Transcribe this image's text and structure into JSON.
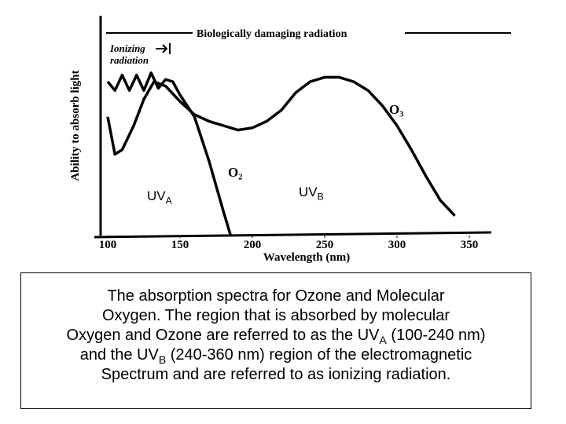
{
  "chart_data": {
    "type": "line",
    "y_label": "Ability to absorb light",
    "x_label": "Wavelength (nm)",
    "xlim": [
      100,
      350
    ],
    "xticks": [
      100,
      150,
      200,
      250,
      300,
      350
    ],
    "ylim": [
      0,
      100
    ],
    "annotations": {
      "damaging": "Biologically damaging radiation",
      "ionizing_1": "Ionizing",
      "ionizing_2": "radiation"
    },
    "series": [
      {
        "name": "O₃",
        "color": "#000000",
        "x": [
          100,
          105,
          110,
          118,
          125,
          132,
          140,
          150,
          160,
          170,
          180,
          190,
          200,
          210,
          220,
          230,
          240,
          250,
          260,
          270,
          280,
          290,
          300,
          310,
          320,
          330,
          340
        ],
        "values": [
          54,
          37,
          39,
          50,
          62,
          70,
          68,
          61,
          55,
          52,
          50,
          48,
          49,
          52,
          57,
          65,
          70,
          72,
          72,
          70,
          66,
          59,
          50,
          39,
          27,
          16,
          9
        ]
      },
      {
        "name": "O₂",
        "color": "#000000",
        "x": [
          100,
          105,
          110,
          115,
          120,
          125,
          130,
          135,
          140,
          145,
          150,
          160,
          170,
          180,
          185
        ],
        "values": [
          70,
          66,
          73,
          66,
          73,
          66,
          74,
          67,
          71,
          70,
          64,
          54,
          34,
          11,
          0
        ]
      }
    ]
  },
  "uv_labels": [
    {
      "text": "UV",
      "sub": "A"
    },
    {
      "text": "UV",
      "sub": "B"
    }
  ],
  "caption": {
    "lines": [
      [
        {
          "text": "The absorption spectra for Ozone and Molecular"
        }
      ],
      [
        {
          "text": "Oxygen. The region that is absorbed by molecular"
        }
      ],
      [
        {
          "text": "Oxygen and Ozone are referred to as the UV"
        },
        {
          "sub": "A"
        },
        {
          "text": " (100-240 nm)"
        }
      ],
      [
        {
          "text": "and the UV"
        },
        {
          "sub": "B"
        },
        {
          "text": " (240-360 nm) region of the electromagnetic"
        }
      ],
      [
        {
          "text": "Spectrum and are referred to as ionizing radiation."
        }
      ]
    ]
  }
}
